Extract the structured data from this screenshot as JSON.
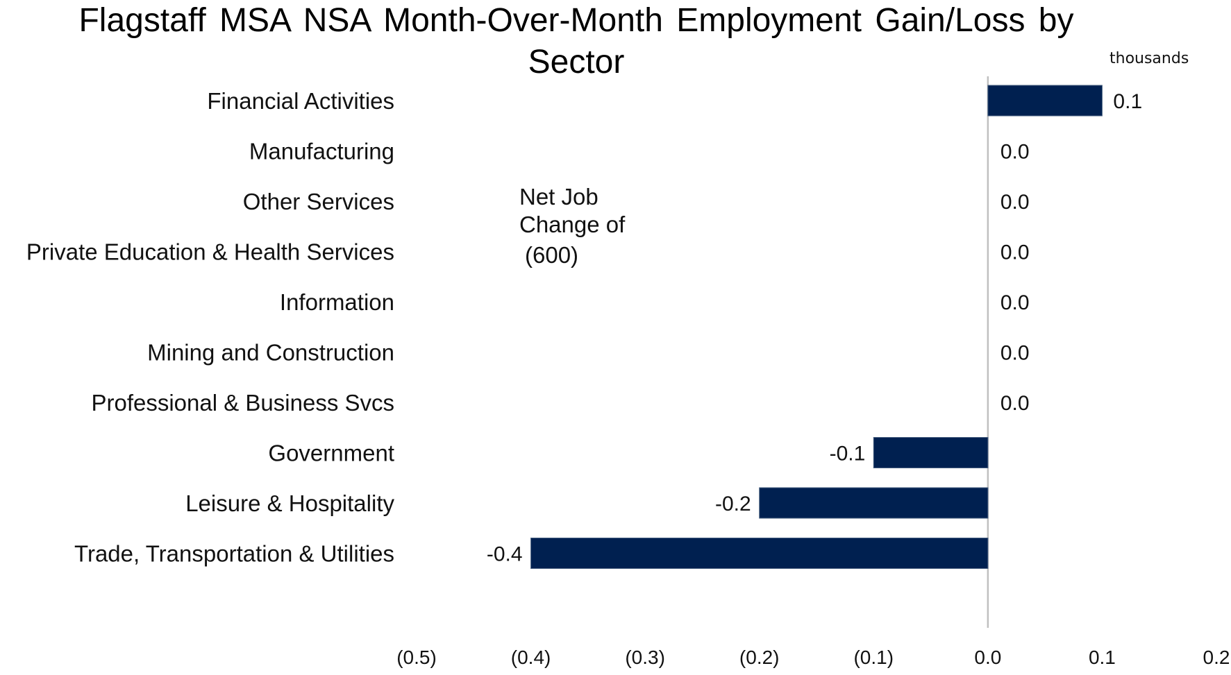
{
  "chart_data": {
    "type": "bar",
    "orientation": "horizontal",
    "title": "Flagstaff MSA NSA Month-Over-Month Employment Gain/Loss by Sector",
    "units_label": "thousands",
    "categories": [
      "Financial Activities",
      "Manufacturing",
      "Other Services",
      "Private Education & Health Services",
      "Information",
      "Mining and Construction",
      "Professional & Business Svcs",
      "Government",
      "Leisure & Hospitality",
      "Trade, Transportation & Utilities"
    ],
    "values": [
      0.1,
      0.0,
      0.0,
      0.0,
      0.0,
      0.0,
      0.0,
      -0.1,
      -0.2,
      -0.4
    ],
    "data_labels": [
      "0.1",
      "0.0",
      "0.0",
      "0.0",
      "0.0",
      "0.0",
      "0.0",
      "-0.1",
      "-0.2",
      "-0.4"
    ],
    "xlim": [
      -0.5,
      0.2
    ],
    "x_ticks": [
      -0.5,
      -0.4,
      -0.3,
      -0.2,
      -0.1,
      0.0,
      0.1,
      0.2
    ],
    "x_tick_labels": [
      "(0.5)",
      "(0.4)",
      "(0.3)",
      "(0.2)",
      "(0.1)",
      "0.0",
      "0.1",
      "0.2"
    ],
    "bar_color": "#002050",
    "zero_line_color": "#c0c0c0",
    "grid": false,
    "legend": "none",
    "annotation": {
      "lines": [
        "Net Job",
        "Change of"
      ],
      "value": "(600)"
    }
  }
}
